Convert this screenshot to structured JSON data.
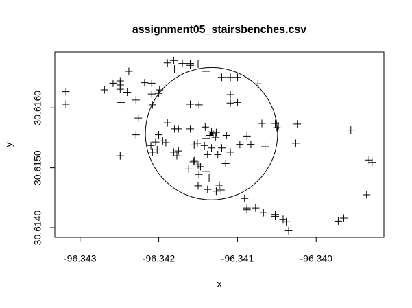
{
  "chart_data": {
    "type": "scatter",
    "title": "assignment05_stairsbenches.csv",
    "x_label": "x",
    "y_label": "y",
    "marker": "+",
    "color": "#000000",
    "x": [
      -96.34318,
      -96.34318,
      -96.34269,
      -96.34258,
      -96.34249,
      -96.34249,
      -96.34249,
      -96.34238,
      -96.3424,
      -96.34248,
      -96.34229,
      -96.34226,
      -96.34229,
      -96.34249,
      -96.34218,
      -96.34209,
      -96.34199,
      -96.342,
      -96.34209,
      -96.34208,
      -96.34189,
      -96.34181,
      -96.3417,
      -96.3416,
      -96.3416,
      -96.3415,
      -96.3418,
      -96.3414,
      -96.3412,
      -96.34109,
      -96.341,
      -96.34109,
      -96.34109,
      -96.341,
      -96.34074,
      -96.3416,
      -96.34149,
      -96.34189,
      -96.342,
      -96.34204,
      -96.34195,
      -96.34191,
      -96.3418,
      -96.34175,
      -96.3416,
      -96.3421,
      -96.34208,
      -96.34181,
      -96.34175,
      -96.34177,
      -96.34155,
      -96.34151,
      -96.34141,
      -96.34133,
      -96.34135,
      -96.3414,
      -96.34128,
      -96.34127,
      -96.34114,
      -96.3412,
      -96.34133,
      -96.34138,
      -96.34125,
      -96.34109,
      -96.34097,
      -96.34088,
      -96.34083,
      -96.34069,
      -96.34065,
      -96.34052,
      -96.3405,
      -96.34048,
      -96.34024,
      -96.34026,
      -96.34155,
      -96.3415,
      -96.34147,
      -96.34162,
      -96.34156,
      -96.3414,
      -96.34149,
      -96.34136,
      -96.34115,
      -96.3415,
      -96.34138,
      -96.34123,
      -96.34121,
      -96.34127,
      -96.34091,
      -96.34088,
      -96.34088,
      -96.34077,
      -96.34067,
      -96.34052,
      -96.34052,
      -96.34042,
      -96.34038,
      -96.34035,
      -96.33972,
      -96.33965,
      -96.33956,
      -96.33936,
      -96.33933,
      -96.33929,
      -96.34202,
      -96.34131,
      -96.34142
    ],
    "y": [
      30.61627,
      30.61606,
      30.6163,
      30.61641,
      30.61645,
      30.61638,
      30.61631,
      30.61661,
      30.61626,
      30.61609,
      30.61613,
      30.61583,
      30.61555,
      30.6152,
      30.61642,
      30.61641,
      30.6163,
      30.61624,
      30.61623,
      30.61605,
      30.61675,
      30.61679,
      30.61674,
      30.61674,
      30.61671,
      30.61673,
      30.61665,
      30.61661,
      30.61651,
      30.61651,
      30.61651,
      30.61622,
      30.61608,
      30.61609,
      30.6164,
      30.61606,
      30.61605,
      30.61575,
      30.61555,
      30.61543,
      30.61545,
      30.61542,
      30.61565,
      30.61565,
      30.61565,
      30.61537,
      30.61526,
      30.61526,
      30.61528,
      30.6152,
      30.61538,
      30.61541,
      30.61568,
      30.6156,
      30.61554,
      30.61549,
      30.61551,
      30.61559,
      30.61554,
      30.61533,
      30.61533,
      30.61522,
      30.61522,
      30.61526,
      30.61539,
      30.61553,
      30.61539,
      30.61574,
      30.61535,
      30.61574,
      30.61567,
      30.6157,
      30.61573,
      30.61541,
      30.61512,
      30.61505,
      30.61502,
      30.61498,
      30.6151,
      30.61494,
      30.61489,
      30.61483,
      30.61507,
      30.6147,
      30.61464,
      30.61471,
      30.61463,
      30.61461,
      30.61449,
      30.61433,
      30.6143,
      30.61433,
      30.61425,
      30.61422,
      30.61419,
      30.61414,
      30.6141,
      30.61395,
      30.61411,
      30.61416,
      30.61563,
      30.61455,
      30.61513,
      30.61509,
      30.6153,
      30.61557,
      30.61537
    ],
    "circle": {
      "x": -96.34133,
      "y": 30.61557,
      "radius": 0.00084
    },
    "xlim": [
      -96.34332,
      -96.33914
    ],
    "ylim": [
      30.61384,
      30.61693
    ],
    "xticks": [
      -96.343,
      -96.342,
      -96.341,
      {
        "value": -96.34,
        "label": "-96.340"
      }
    ],
    "yticks": [
      {
        "value": 30.614,
        "label": "30.6140"
      },
      {
        "value": 30.615,
        "label": "30.6150"
      },
      {
        "value": 30.616,
        "label": "30.6160"
      }
    ]
  }
}
